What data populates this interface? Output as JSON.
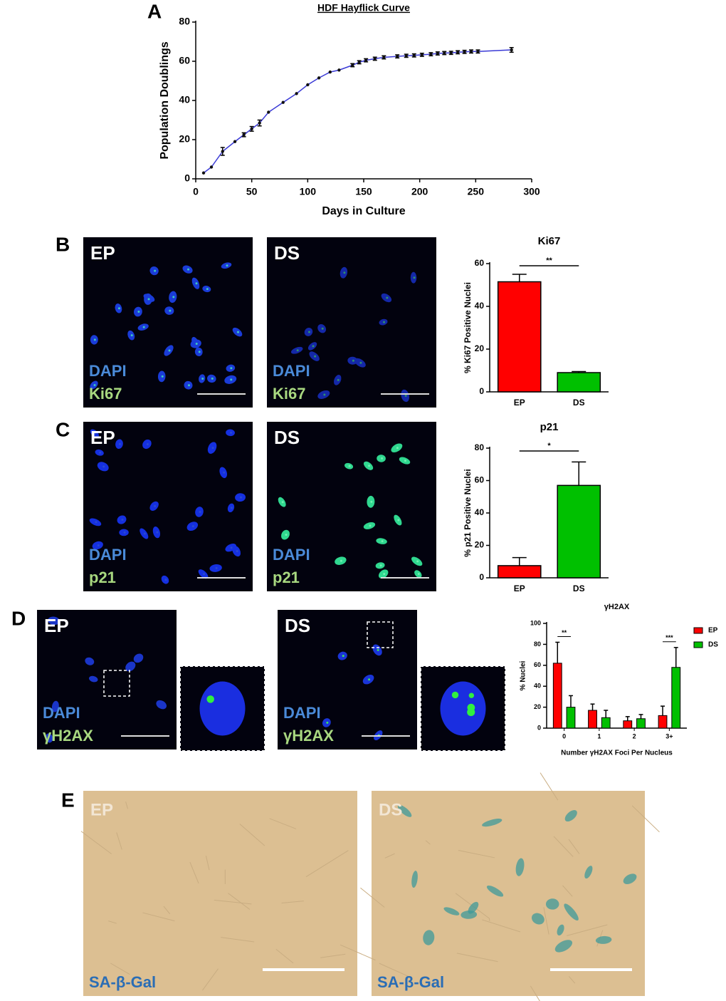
{
  "figure": {
    "panels": [
      "A",
      "B",
      "C",
      "D",
      "E"
    ],
    "images": [
      {
        "title": "EP",
        "stains": [
          "DAPI",
          "Ki67"
        ]
      },
      {
        "title": "DS",
        "stains": [
          "DAPI",
          "Ki67"
        ]
      },
      {
        "title": "EP",
        "stains": [
          "DAPI",
          "p21"
        ]
      },
      {
        "title": "DS",
        "stains": [
          "DAPI",
          "p21"
        ]
      },
      {
        "title": "EP",
        "stains": [
          "DAPI",
          "γH2AX"
        ]
      },
      {
        "title": "DS",
        "stains": [
          "DAPI",
          "γH2AX"
        ]
      },
      {
        "title": "EP",
        "stains": [
          "SA-β-Gal"
        ]
      },
      {
        "title": "DS",
        "stains": [
          "SA-β-Gal"
        ]
      }
    ]
  },
  "chart_data": [
    {
      "type": "line",
      "title": "HDF Hayflick Curve",
      "x_label": "Days in Culture",
      "y_label": "Population Doublings",
      "x": [
        7,
        14,
        24,
        35,
        43,
        50,
        57,
        65,
        78,
        90,
        100,
        110,
        120,
        128,
        140,
        146,
        152,
        160,
        168,
        180,
        188,
        195,
        202,
        210,
        216,
        222,
        228,
        234,
        240,
        246,
        252,
        282
      ],
      "values": [
        3,
        6,
        14,
        19,
        22.5,
        25.5,
        28.5,
        34,
        39,
        43.5,
        48,
        51.5,
        54.5,
        55.5,
        58,
        59.5,
        60.5,
        61.3,
        62,
        62.5,
        62.8,
        63,
        63.3,
        63.6,
        64,
        64.2,
        64.3,
        64.6,
        64.8,
        65,
        65,
        65.8
      ],
      "errors": [
        null,
        null,
        2,
        null,
        1,
        1.2,
        1.5,
        null,
        null,
        null,
        null,
        null,
        null,
        null,
        0.8,
        0.8,
        0.8,
        0.8,
        0.8,
        0.8,
        0.8,
        0.8,
        0.8,
        0.8,
        0.8,
        0.8,
        0.8,
        0.8,
        0.8,
        0.8,
        0.8,
        1.2
      ],
      "color": "#3a3ad6",
      "marker_color": "#111111",
      "xlim": [
        0,
        300
      ],
      "xticks": [
        0,
        50,
        100,
        150,
        200,
        250,
        300
      ],
      "ylim": [
        0,
        80
      ],
      "yticks": [
        0,
        20,
        40,
        60,
        80
      ]
    },
    {
      "type": "bar",
      "title": "Ki67",
      "y_label": "% Ki67 Positive Nuclei",
      "categories": [
        "EP",
        "DS"
      ],
      "values": [
        51.5,
        9
      ],
      "errors": [
        3.5,
        0.5
      ],
      "colors": [
        "#ff0000",
        "#00c000"
      ],
      "ylim": [
        0,
        60
      ],
      "yticks": [
        0,
        20,
        40,
        60
      ],
      "significance": "**"
    },
    {
      "type": "bar",
      "title": "p21",
      "y_label": "% p21 Positive Nuclei",
      "categories": [
        "EP",
        "DS"
      ],
      "values": [
        7.5,
        57
      ],
      "errors": [
        5,
        14.5
      ],
      "colors": [
        "#ff0000",
        "#00c000"
      ],
      "ylim": [
        0,
        80
      ],
      "yticks": [
        0,
        20,
        40,
        60,
        80
      ],
      "significance": "*"
    },
    {
      "type": "grouped_bar",
      "title": "γH2AX",
      "x_label": "Number γH2AX Foci Per Nucleus",
      "y_label": "% Nuclei",
      "categories": [
        "0",
        "1",
        "2",
        "3+"
      ],
      "series": [
        {
          "name": "EP",
          "color": "#ff0000",
          "values": [
            62,
            17,
            7,
            12
          ],
          "errors": [
            20,
            6,
            4,
            9
          ]
        },
        {
          "name": "DS",
          "color": "#00c000",
          "values": [
            20,
            10,
            9,
            58
          ],
          "errors": [
            11,
            7,
            4,
            19
          ]
        }
      ],
      "ylim": [
        0,
        100
      ],
      "yticks": [
        0,
        20,
        40,
        60,
        80,
        100
      ],
      "significance": [
        "**",
        null,
        null,
        "***"
      ],
      "legend": "upper-right"
    }
  ]
}
